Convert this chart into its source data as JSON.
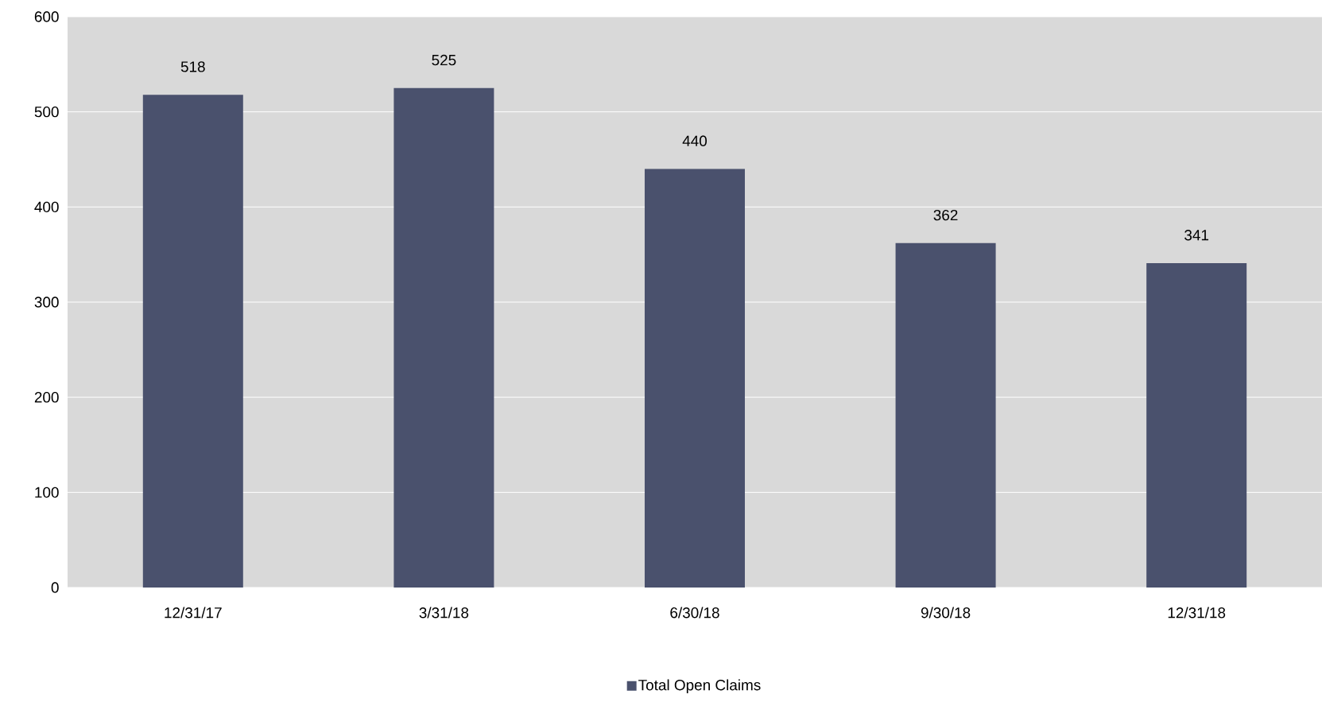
{
  "chart_data": {
    "type": "bar",
    "categories": [
      "12/31/17",
      "3/31/18",
      "6/30/18",
      "9/30/18",
      "12/31/18"
    ],
    "series": [
      {
        "name": "Total Open Claims",
        "color": "#4a516d",
        "values": [
          518,
          525,
          440,
          362,
          341
        ]
      }
    ],
    "ylim": [
      0,
      600
    ],
    "yticks": [
      0,
      100,
      200,
      300,
      400,
      500,
      600
    ],
    "grid": "y",
    "legend": "bottom",
    "data_labels": true
  }
}
